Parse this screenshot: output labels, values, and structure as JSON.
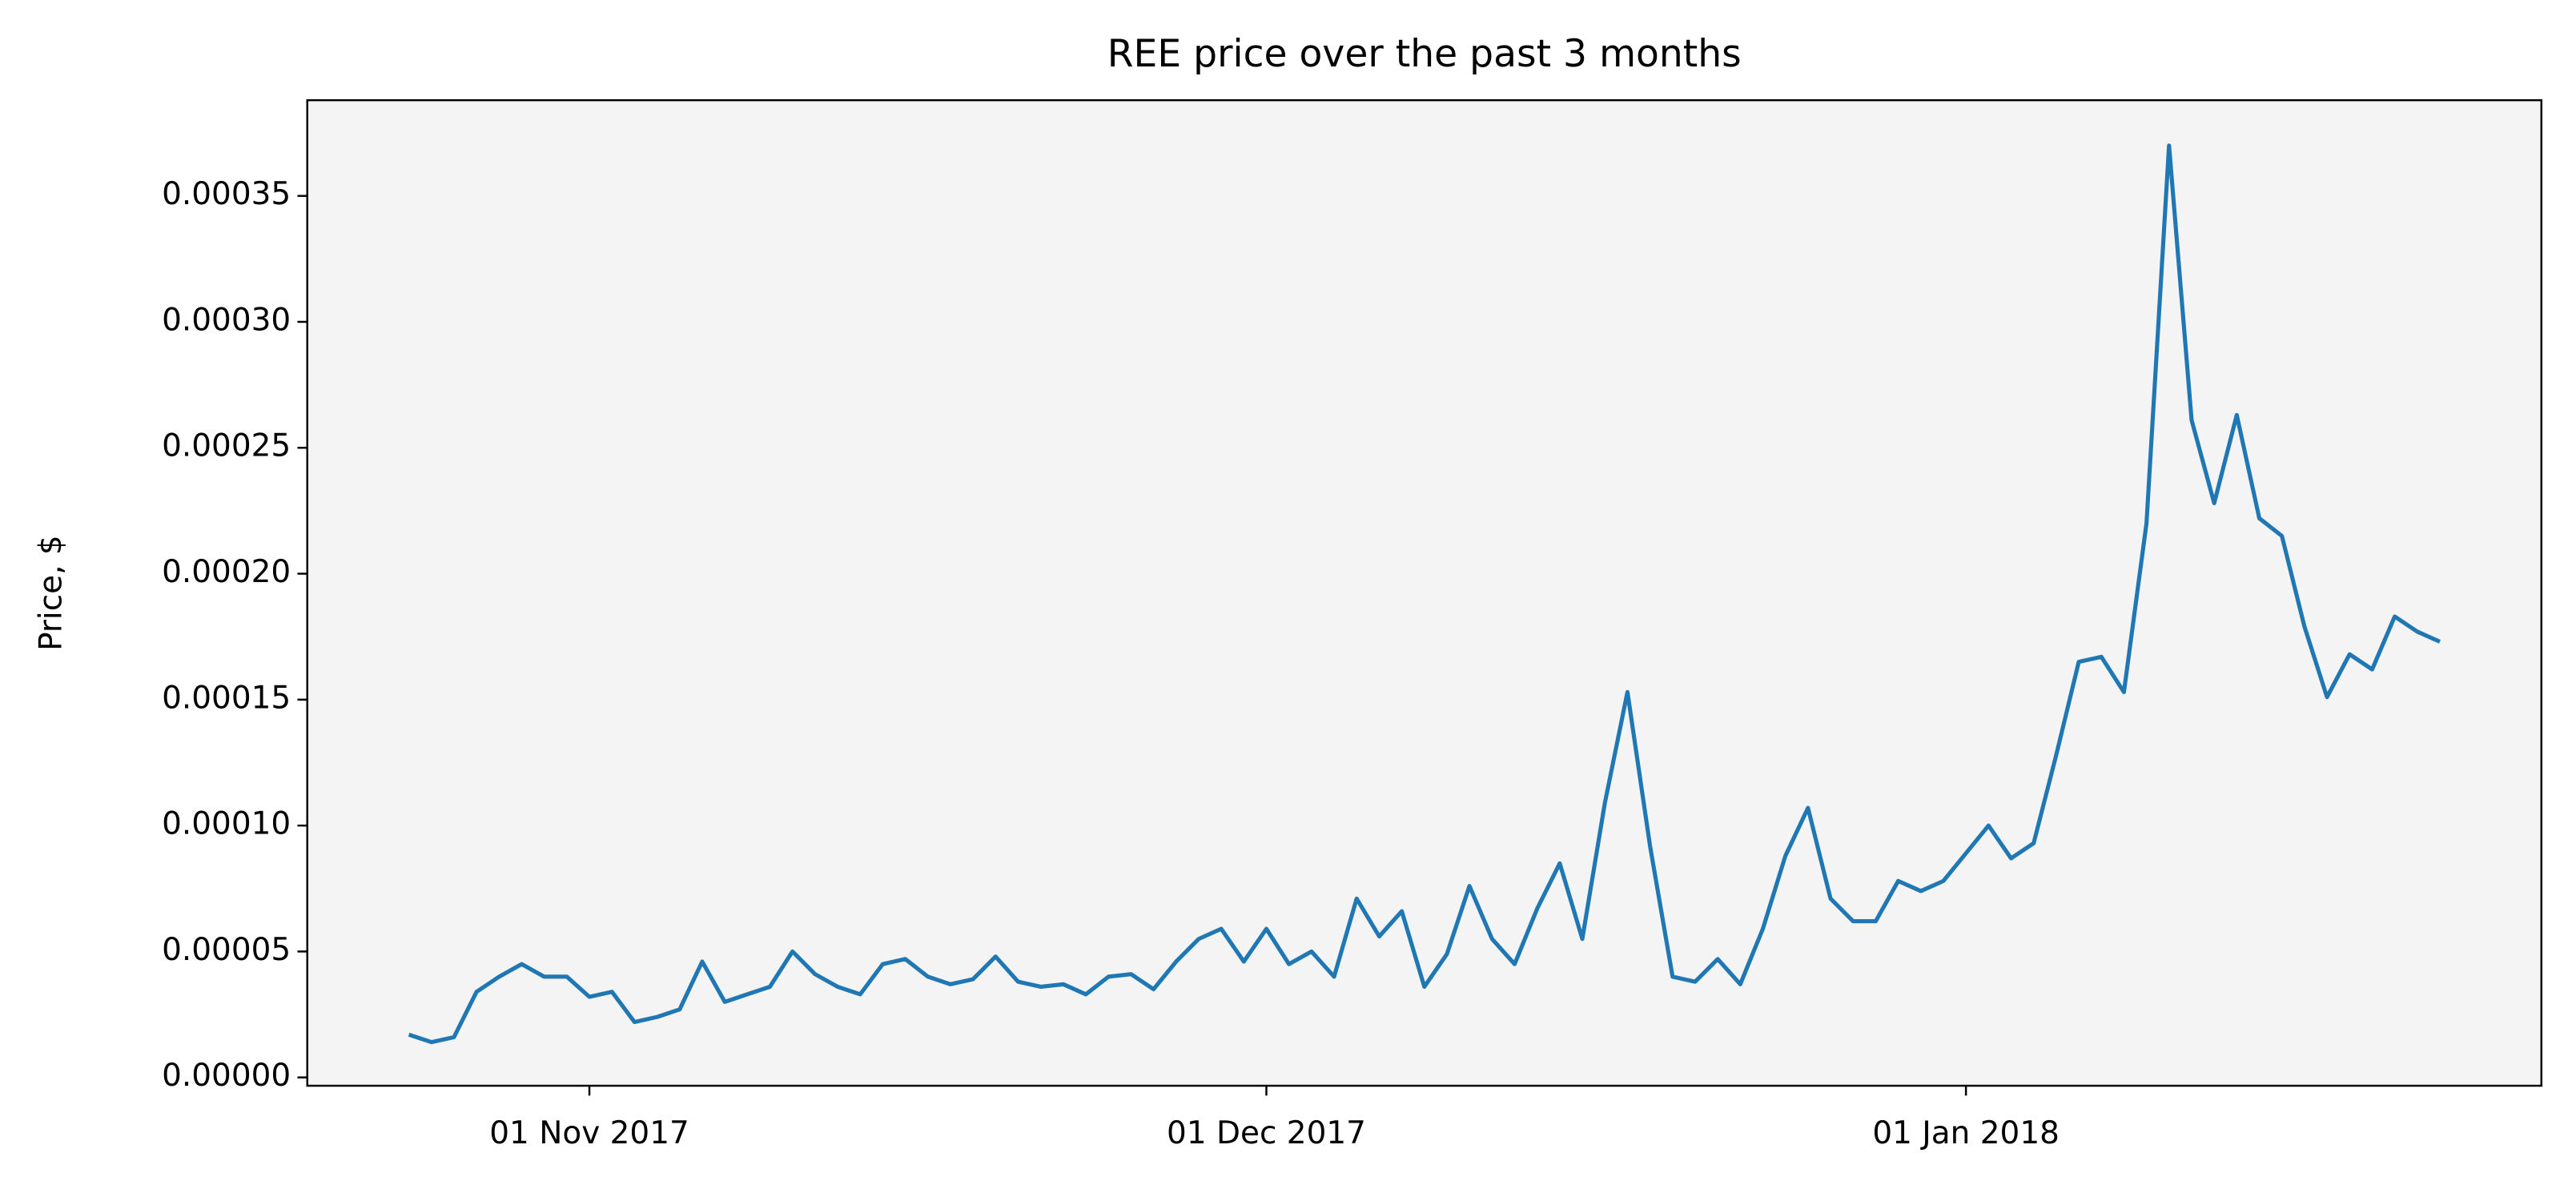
{
  "chart_data": {
    "type": "line",
    "title": "REE price over the past 3 months",
    "y_label": "Price, $",
    "x": [
      "2017-10-24",
      "2017-10-25",
      "2017-10-26",
      "2017-10-27",
      "2017-10-28",
      "2017-10-29",
      "2017-10-30",
      "2017-10-31",
      "2017-11-01",
      "2017-11-02",
      "2017-11-03",
      "2017-11-04",
      "2017-11-05",
      "2017-11-06",
      "2017-11-07",
      "2017-11-08",
      "2017-11-09",
      "2017-11-10",
      "2017-11-11",
      "2017-11-12",
      "2017-11-13",
      "2017-11-14",
      "2017-11-15",
      "2017-11-16",
      "2017-11-17",
      "2017-11-18",
      "2017-11-19",
      "2017-11-20",
      "2017-11-21",
      "2017-11-22",
      "2017-11-23",
      "2017-11-24",
      "2017-11-25",
      "2017-11-26",
      "2017-11-27",
      "2017-11-28",
      "2017-11-29",
      "2017-11-30",
      "2017-12-01",
      "2017-12-02",
      "2017-12-03",
      "2017-12-04",
      "2017-12-05",
      "2017-12-06",
      "2017-12-07",
      "2017-12-08",
      "2017-12-09",
      "2017-12-10",
      "2017-12-11",
      "2017-12-12",
      "2017-12-13",
      "2017-12-14",
      "2017-12-15",
      "2017-12-16",
      "2017-12-17",
      "2017-12-18",
      "2017-12-19",
      "2017-12-20",
      "2017-12-21",
      "2017-12-22",
      "2017-12-23",
      "2017-12-24",
      "2017-12-25",
      "2017-12-26",
      "2017-12-27",
      "2017-12-28",
      "2017-12-29",
      "2017-12-30",
      "2017-12-31",
      "2018-01-01",
      "2018-01-02",
      "2018-01-03",
      "2018-01-04",
      "2018-01-05",
      "2018-01-06",
      "2018-01-07",
      "2018-01-08",
      "2018-01-09",
      "2018-01-10",
      "2018-01-11",
      "2018-01-12",
      "2018-01-13",
      "2018-01-14",
      "2018-01-15",
      "2018-01-16",
      "2018-01-17",
      "2018-01-18",
      "2018-01-19",
      "2018-01-20",
      "2018-01-21",
      "2018-01-22"
    ],
    "series": [
      {
        "color": "#1f77b4",
        "values": [
          1.7e-05,
          1.4e-05,
          1.6e-05,
          3.4e-05,
          4e-05,
          4.5e-05,
          4e-05,
          4e-05,
          3.2e-05,
          3.4e-05,
          2.2e-05,
          2.4e-05,
          2.7e-05,
          4.6e-05,
          3e-05,
          3.3e-05,
          3.6e-05,
          5e-05,
          4.1e-05,
          3.6e-05,
          3.3e-05,
          4.5e-05,
          4.7e-05,
          4e-05,
          3.7e-05,
          3.9e-05,
          4.8e-05,
          3.8e-05,
          3.6e-05,
          3.7e-05,
          3.3e-05,
          4e-05,
          4.1e-05,
          3.5e-05,
          4.6e-05,
          5.5e-05,
          5.9e-05,
          4.6e-05,
          5.9e-05,
          4.5e-05,
          5e-05,
          4e-05,
          7.1e-05,
          5.6e-05,
          6.6e-05,
          3.6e-05,
          4.9e-05,
          7.6e-05,
          5.5e-05,
          4.5e-05,
          6.7e-05,
          8.5e-05,
          5.5e-05,
          0.000109,
          0.000153,
          9.2e-05,
          4e-05,
          3.8e-05,
          4.7e-05,
          3.7e-05,
          5.9e-05,
          8.8e-05,
          0.000107,
          7.1e-05,
          6.2e-05,
          6.2e-05,
          7.8e-05,
          7.4e-05,
          7.8e-05,
          8.9e-05,
          0.0001,
          8.7e-05,
          9.3e-05,
          0.000128,
          0.000165,
          0.000167,
          0.000153,
          0.00022,
          0.00037,
          0.000261,
          0.000228,
          0.000263,
          0.000222,
          0.000215,
          0.000179,
          0.000151,
          0.000168,
          0.000162,
          0.000183,
          0.000177,
          0.000173
        ]
      }
    ],
    "xlim": [
      "2017-10-19T12:00",
      "2018-01-26T12:00"
    ],
    "xticks": [
      {
        "value": "2017-11-01",
        "label": "01 Nov 2017"
      },
      {
        "value": "2017-12-01",
        "label": "01 Dec 2017"
      },
      {
        "value": "2018-01-01",
        "label": "01 Jan 2018"
      }
    ],
    "ylim": [
      -3.3e-06,
      0.000388
    ],
    "yticks": [
      {
        "value": 0,
        "label": "0.00000"
      },
      {
        "value": 5e-05,
        "label": "0.00005"
      },
      {
        "value": 0.0001,
        "label": "0.00010"
      },
      {
        "value": 0.00015,
        "label": "0.00015"
      },
      {
        "value": 0.0002,
        "label": "0.00020"
      },
      {
        "value": 0.00025,
        "label": "0.00025"
      },
      {
        "value": 0.0003,
        "label": "0.00030"
      },
      {
        "value": 0.00035,
        "label": "0.00035"
      }
    ],
    "plot_background": "#f4f4f4"
  }
}
